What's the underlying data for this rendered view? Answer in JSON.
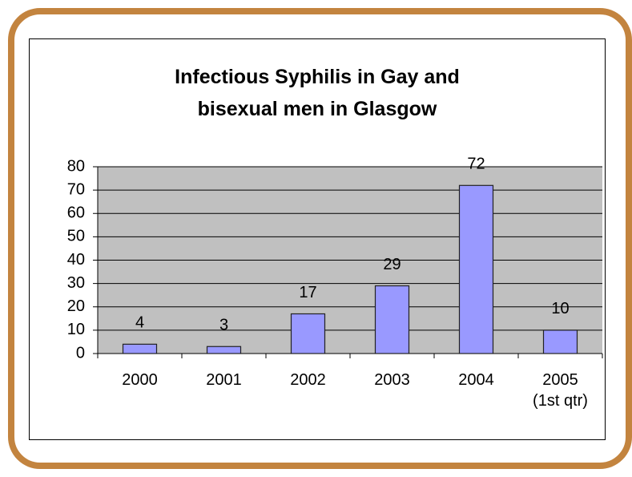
{
  "chart_data": {
    "type": "bar",
    "title": "Infectious Syphilis in Gay and\nbisexual men in Glasgow",
    "categories": [
      "2000",
      "2001",
      "2002",
      "2003",
      "2004",
      "2005\n(1st qtr)"
    ],
    "values": [
      4,
      3,
      17,
      29,
      72,
      10
    ],
    "color": "#9999ff",
    "ylim": [
      0,
      80
    ],
    "yticks": [
      0,
      10,
      20,
      30,
      40,
      50,
      60,
      70,
      80
    ],
    "grid": true
  }
}
